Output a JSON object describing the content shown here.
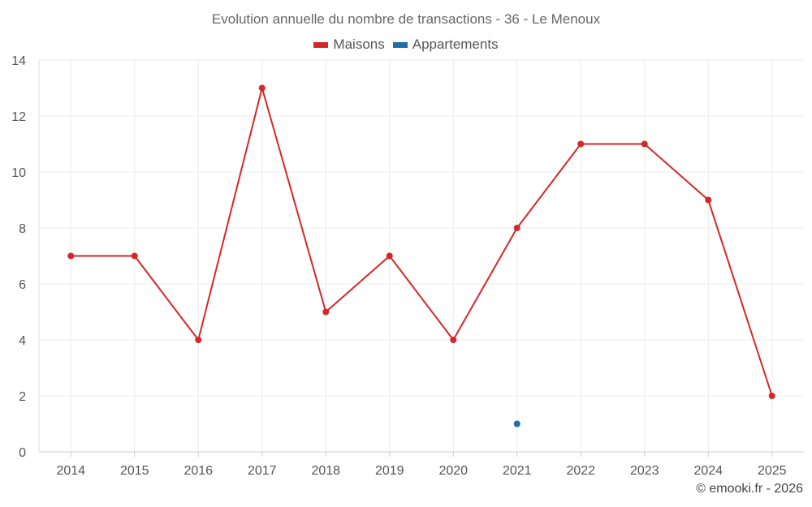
{
  "chart_data": {
    "type": "line",
    "title": "Evolution annuelle du nombre de transactions - 36 - Le Menoux",
    "categories": [
      "2014",
      "2015",
      "2016",
      "2017",
      "2018",
      "2019",
      "2020",
      "2021",
      "2022",
      "2023",
      "2024",
      "2025"
    ],
    "series": [
      {
        "name": "Maisons",
        "color": "#d62728",
        "values": [
          7,
          7,
          4,
          13,
          5,
          7,
          4,
          8,
          11,
          11,
          9,
          2
        ]
      },
      {
        "name": "Appartements",
        "color": "#1f6fa5",
        "values": [
          null,
          null,
          null,
          null,
          null,
          null,
          null,
          1,
          null,
          null,
          null,
          null
        ]
      }
    ],
    "ylim": [
      0,
      14
    ],
    "yticks": [
      0,
      2,
      4,
      6,
      8,
      10,
      12,
      14
    ],
    "xlabel": "",
    "ylabel": "",
    "grid": true,
    "legend": "top-center"
  },
  "footer": {
    "credit": "© emooki.fr - 2026"
  }
}
